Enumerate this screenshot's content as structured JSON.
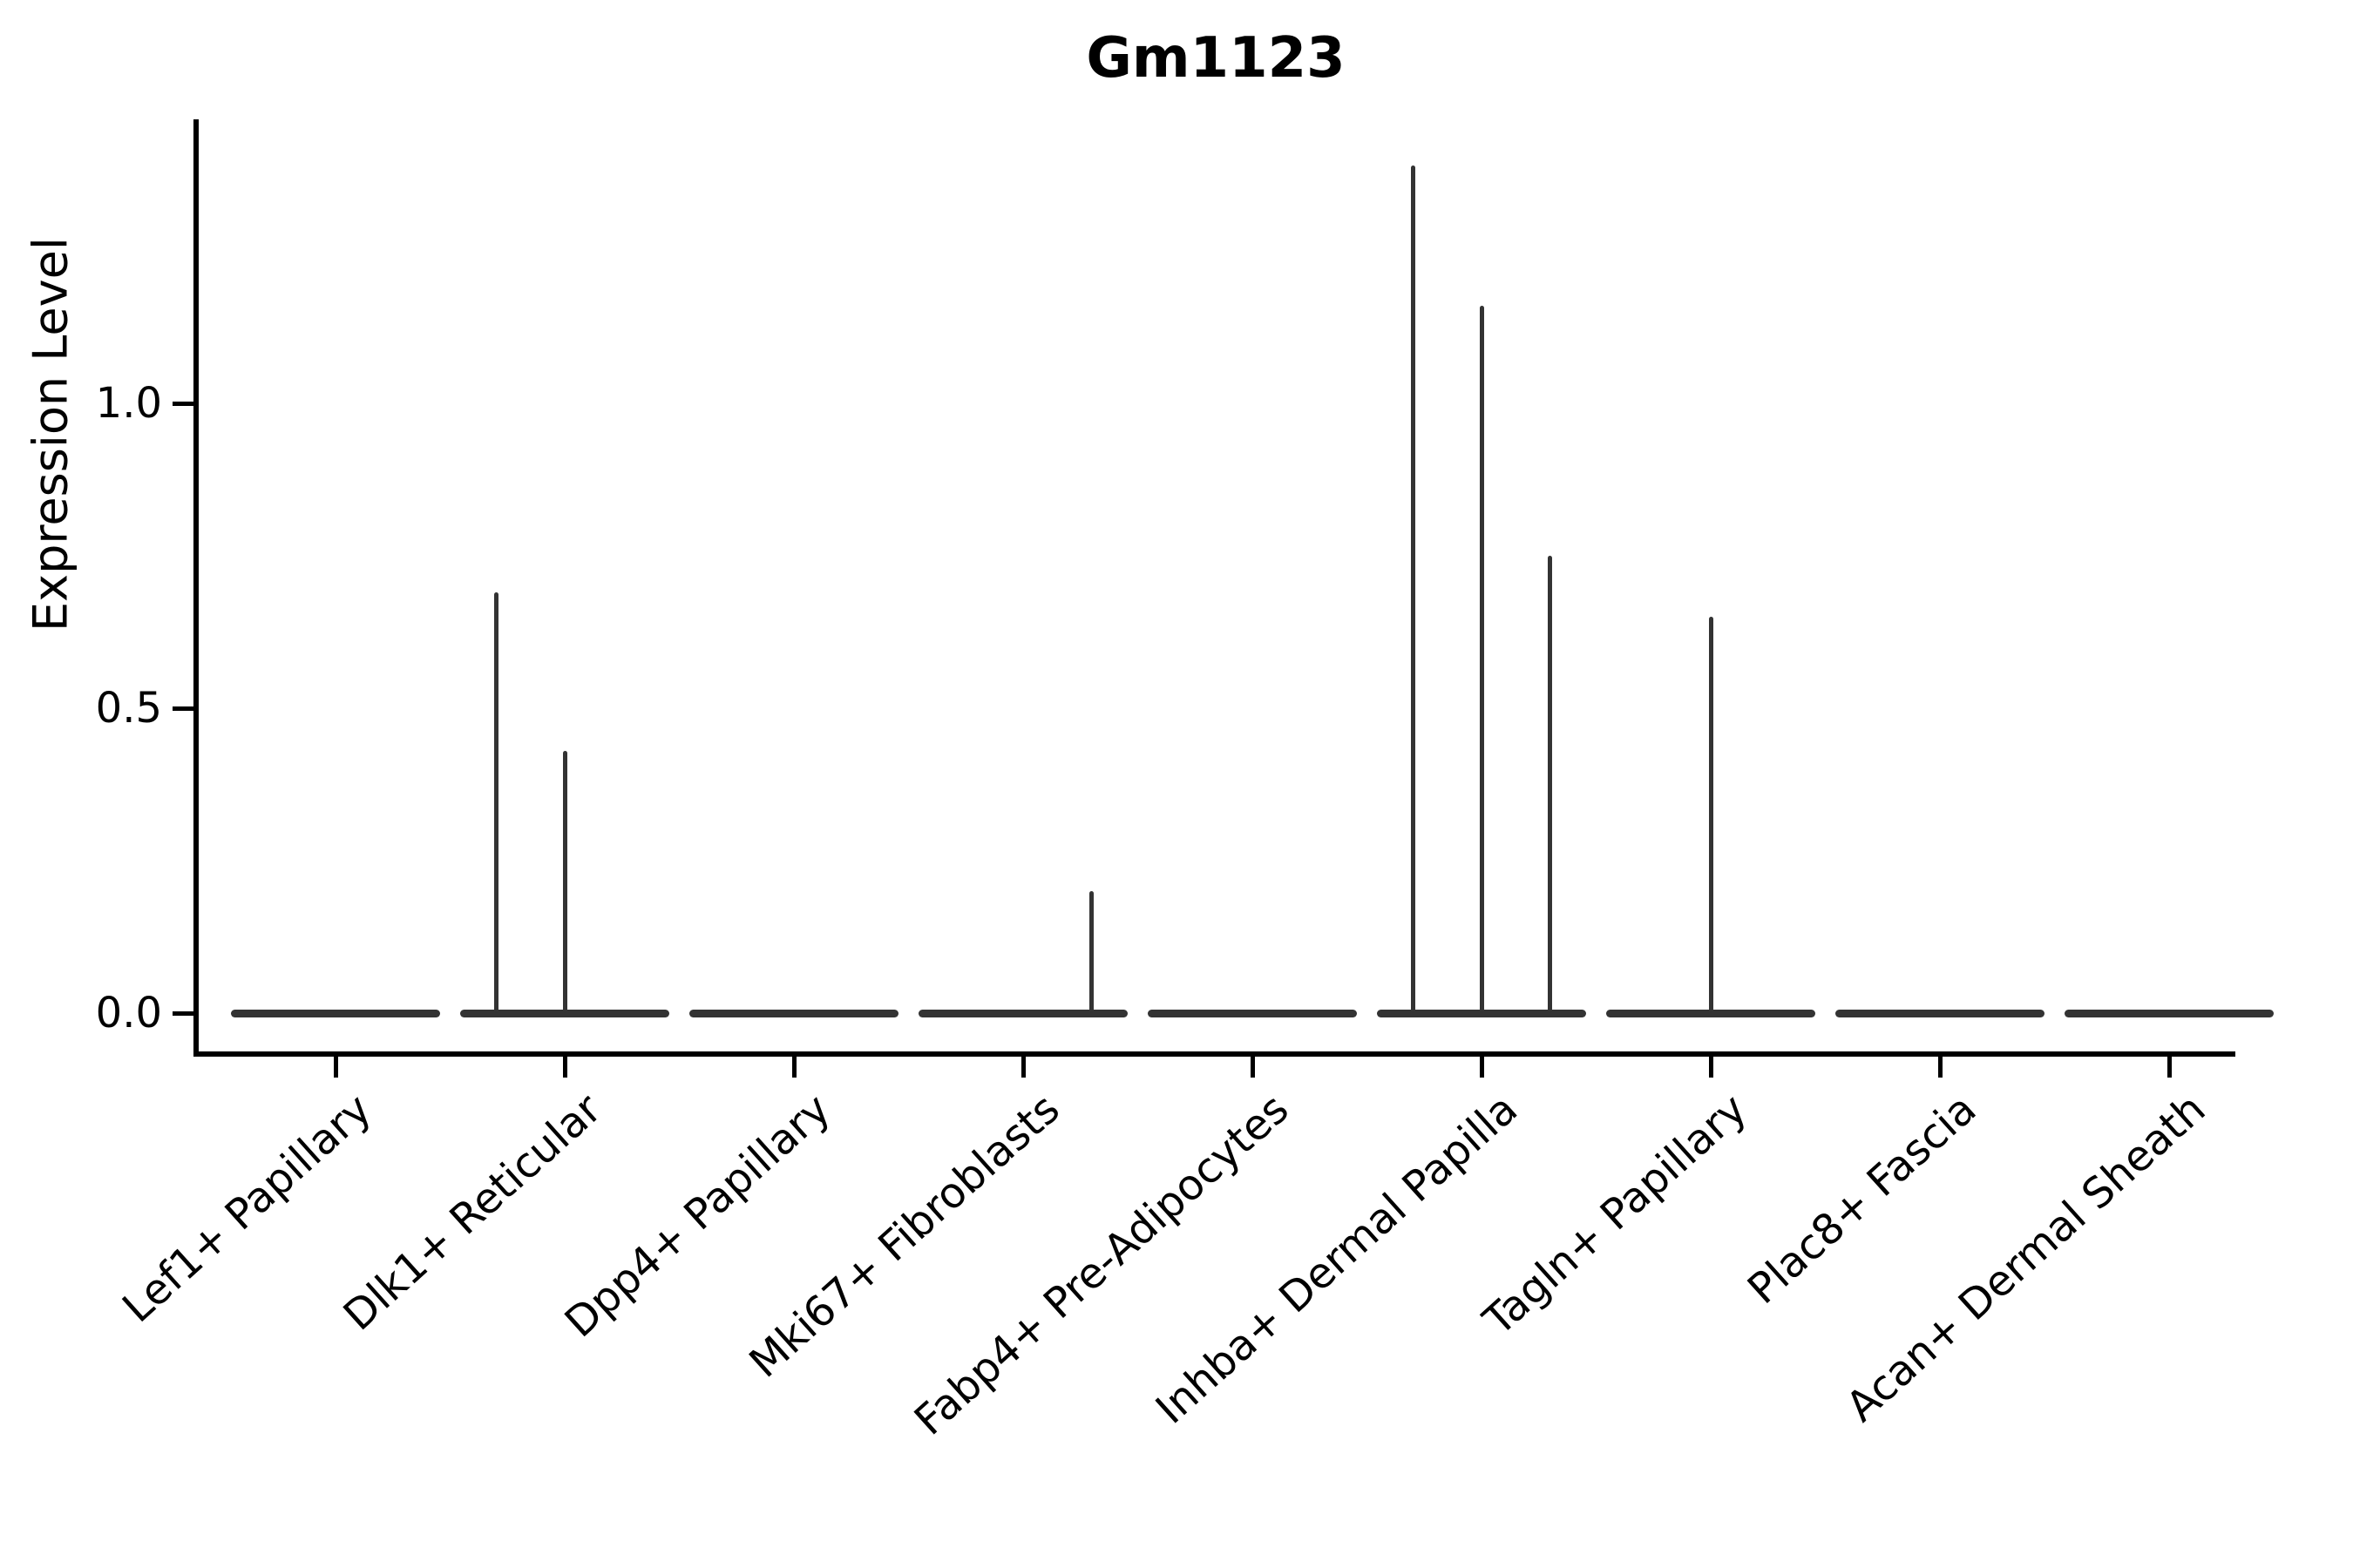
{
  "title": "Gm1123",
  "chart_data": {
    "type": "violin",
    "title": "Gm1123",
    "xlabel": "",
    "ylabel": "Expression Level",
    "categories": [
      "Lef1+ Papillary",
      "Dlk1+ Reticular",
      "Dpp4+ Papillary",
      "Mki67+ Fibroblasts",
      "Fabp4+ Pre-Adipocytes",
      "Inhba+ Dermal Papilla",
      "Tagln+ Papillary",
      "Plac8+ Fascia",
      "Acan+ Dermal Sheath"
    ],
    "y_ticks": [
      {
        "label": "0.0",
        "value": 0.0
      },
      {
        "label": "0.5",
        "value": 0.5
      },
      {
        "label": "1.0",
        "value": 1.0
      }
    ],
    "ylim": [
      -0.07,
      1.46
    ],
    "grid": false,
    "legend": "none",
    "violins": [
      {
        "category": "Lef1+ Papillary",
        "base_value": 0.0,
        "spikes": []
      },
      {
        "category": "Dlk1+ Reticular",
        "base_value": 0.0,
        "spikes": [
          {
            "offset": -0.3,
            "peak": 0.69
          },
          {
            "offset": 0.0,
            "peak": 0.43
          }
        ]
      },
      {
        "category": "Dpp4+ Papillary",
        "base_value": 0.0,
        "spikes": []
      },
      {
        "category": "Mki67+ Fibroblasts",
        "base_value": 0.0,
        "spikes": [
          {
            "offset": 0.3,
            "peak": 0.2
          }
        ]
      },
      {
        "category": "Fabp4+ Pre-Adipocytes",
        "base_value": 0.0,
        "spikes": []
      },
      {
        "category": "Inhba+ Dermal Papilla",
        "base_value": 0.0,
        "spikes": [
          {
            "offset": -0.3,
            "peak": 1.39
          },
          {
            "offset": 0.0,
            "peak": 1.16
          },
          {
            "offset": 0.3,
            "peak": 0.75
          }
        ]
      },
      {
        "category": "Tagln+ Papillary",
        "base_value": 0.0,
        "spikes": [
          {
            "offset": 0.0,
            "peak": 0.65
          }
        ]
      },
      {
        "category": "Plac8+ Fascia",
        "base_value": 0.0,
        "spikes": []
      },
      {
        "category": "Acan+ Dermal Sheath",
        "base_value": 0.0,
        "spikes": []
      }
    ],
    "colors": {
      "violin": "#333333",
      "axis": "#000000",
      "background": "#ffffff"
    }
  }
}
